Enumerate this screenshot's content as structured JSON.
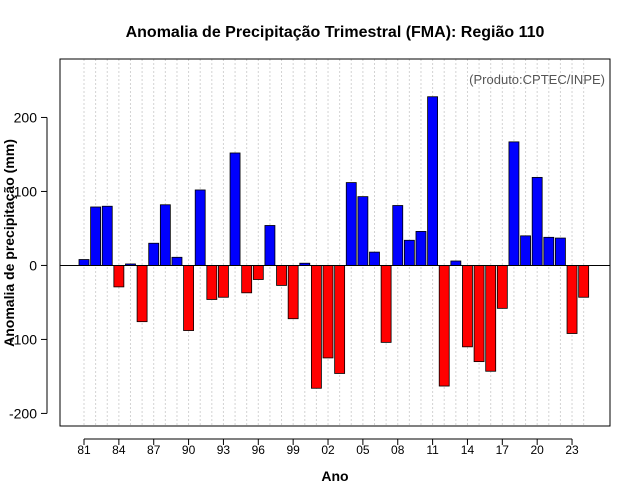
{
  "chart_data": {
    "type": "bar",
    "title": "Anomalia de Precipitação Trimestral (FMA): Região 110",
    "xlabel": "Ano",
    "ylabel": "Anomalia de precipitação (mm)",
    "annotation": "(Produto:CPTEC/INPE)",
    "categories": [
      1981,
      1982,
      1983,
      1984,
      1985,
      1986,
      1987,
      1988,
      1989,
      1990,
      1991,
      1992,
      1993,
      1994,
      1995,
      1996,
      1997,
      1998,
      1999,
      2000,
      2001,
      2002,
      2003,
      2004,
      2005,
      2006,
      2007,
      2008,
      2009,
      2010,
      2011,
      2012,
      2013,
      2014,
      2015,
      2016,
      2017,
      2018,
      2019,
      2020,
      2021,
      2022,
      2023,
      2024
    ],
    "values": [
      8,
      79,
      80,
      -29,
      2,
      -76,
      30,
      82,
      11,
      -88,
      102,
      -46,
      -43,
      152,
      -37,
      -19,
      54,
      -27,
      -72,
      3,
      -166,
      -125,
      -146,
      112,
      93,
      18,
      -104,
      81,
      34,
      46,
      228,
      -163,
      6,
      -110,
      -130,
      -143,
      -58,
      167,
      40,
      119,
      38,
      37,
      -92,
      -43
    ],
    "xticks": [
      "81",
      "84",
      "87",
      "90",
      "93",
      "96",
      "99",
      "02",
      "05",
      "08",
      "11",
      "14",
      "17",
      "20",
      "23"
    ],
    "yticks": [
      -200,
      -100,
      0,
      100,
      200
    ],
    "ylim": [
      -217,
      279
    ],
    "colors": {
      "positive": "#0000ff",
      "negative": "#ff0000",
      "grid": "#d3d3d3"
    }
  }
}
